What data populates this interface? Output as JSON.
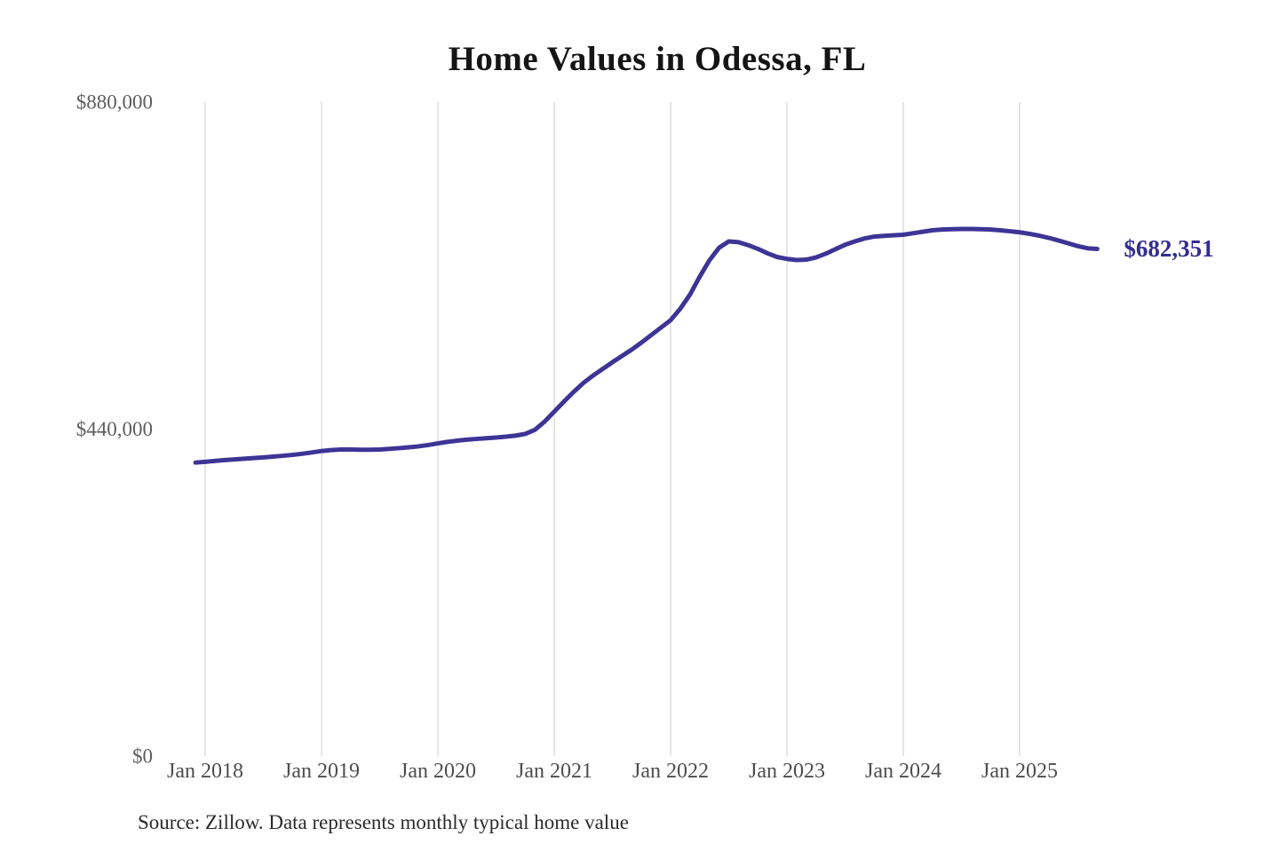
{
  "chart_data": {
    "type": "line",
    "title": "Home Values in Odessa, FL",
    "source_note": "Source: Zillow. Data represents monthly typical home value",
    "series_name": "Monthly typical home value",
    "line_color": "#3e3496",
    "end_label": "$682,351",
    "end_value": 682351,
    "ylim": [
      0,
      880000
    ],
    "grid": "vertical-only",
    "y_ticks": [
      {
        "label": "$0",
        "value": 0
      },
      {
        "label": "$440,000",
        "value": 440000
      },
      {
        "label": "$880,000",
        "value": 880000
      }
    ],
    "x_tick_labels": [
      "Jan 2018",
      "Jan 2019",
      "Jan 2020",
      "Jan 2021",
      "Jan 2022",
      "Jan 2023",
      "Jan 2024",
      "Jan 2025"
    ],
    "months": [
      "Dec 2017",
      "Jan 2018",
      "Feb 2018",
      "Mar 2018",
      "Apr 2018",
      "May 2018",
      "Jun 2018",
      "Jul 2018",
      "Aug 2018",
      "Sep 2018",
      "Oct 2018",
      "Nov 2018",
      "Dec 2018",
      "Jan 2019",
      "Feb 2019",
      "Mar 2019",
      "Apr 2019",
      "May 2019",
      "Jun 2019",
      "Jul 2019",
      "Aug 2019",
      "Sep 2019",
      "Oct 2019",
      "Nov 2019",
      "Dec 2019",
      "Jan 2020",
      "Feb 2020",
      "Mar 2020",
      "Apr 2020",
      "May 2020",
      "Jun 2020",
      "Jul 2020",
      "Aug 2020",
      "Sep 2020",
      "Oct 2020",
      "Nov 2020",
      "Dec 2020",
      "Jan 2021",
      "Feb 2021",
      "Mar 2021",
      "Apr 2021",
      "May 2021",
      "Jun 2021",
      "Jul 2021",
      "Aug 2021",
      "Sep 2021",
      "Oct 2021",
      "Nov 2021",
      "Dec 2021",
      "Jan 2022",
      "Feb 2022",
      "Mar 2022",
      "Apr 2022",
      "May 2022",
      "Jun 2022",
      "Jul 2022",
      "Aug 2022",
      "Sep 2022",
      "Oct 2022",
      "Nov 2022",
      "Dec 2022",
      "Jan 2023",
      "Feb 2023",
      "Mar 2023",
      "Apr 2023",
      "May 2023",
      "Jun 2023",
      "Jul 2023",
      "Aug 2023",
      "Sep 2023",
      "Oct 2023",
      "Nov 2023",
      "Dec 2023",
      "Jan 2024",
      "Feb 2024",
      "Mar 2024",
      "Apr 2024",
      "May 2024",
      "Jun 2024",
      "Jul 2024",
      "Aug 2024",
      "Sep 2024",
      "Oct 2024",
      "Nov 2024",
      "Dec 2024",
      "Jan 2025",
      "Feb 2025",
      "Mar 2025",
      "Apr 2025",
      "May 2025",
      "Jun 2025",
      "Jul 2025",
      "Aug 2025",
      "Sep 2025"
    ],
    "values": [
      395000,
      396000,
      397200,
      398300,
      399300,
      400200,
      401100,
      402000,
      403000,
      404100,
      405300,
      406800,
      408600,
      410500,
      411800,
      412500,
      412600,
      412300,
      412200,
      412600,
      413400,
      414400,
      415500,
      416800,
      418600,
      420800,
      422800,
      424500,
      425800,
      426800,
      427700,
      428700,
      429800,
      431200,
      433500,
      439000,
      450000,
      463500,
      477000,
      490000,
      502000,
      512000,
      521000,
      530000,
      538500,
      547000,
      556500,
      566500,
      576500,
      586500,
      602000,
      621000,
      645000,
      667000,
      684000,
      692500,
      691500,
      687500,
      682500,
      676500,
      671500,
      669000,
      667500,
      668000,
      671000,
      676000,
      682000,
      688000,
      692500,
      696500,
      699000,
      700000,
      700800,
      701500,
      703500,
      705500,
      707500,
      708500,
      709000,
      709200,
      709200,
      709000,
      708500,
      707500,
      706200,
      704800,
      702800,
      700300,
      697300,
      693800,
      690000,
      686200,
      683300,
      682351
    ]
  }
}
